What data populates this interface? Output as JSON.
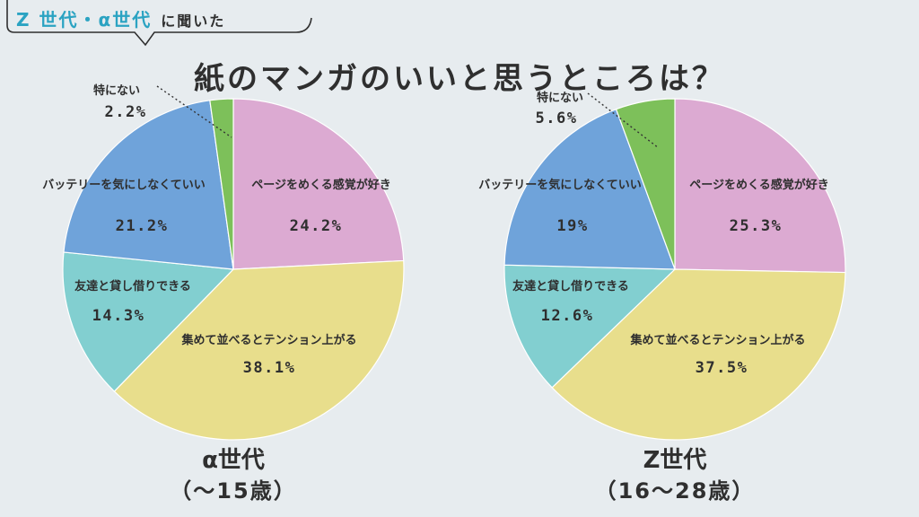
{
  "header": {
    "generations_label": "Z 世代・α世代",
    "asked_label": "に聞いた"
  },
  "title": "紙のマンガのいいと思うところは？",
  "colors": {
    "pink": "#dcaad2",
    "yellow": "#e8de8c",
    "teal": "#82cfd0",
    "blue": "#6fa3da",
    "green": "#7dc05a",
    "background": "#e7ecef",
    "accent": "#2ba3c2"
  },
  "chart_data": [
    {
      "type": "pie",
      "name_label": "α世代",
      "age_label": "（〜15歳）",
      "slices": [
        {
          "label": "ページをめくる感覚が好き",
          "value": 24.2,
          "value_label": "24.2%",
          "color": "#dcaad2"
        },
        {
          "label": "集めて並べるとテンション上がる",
          "value": 38.1,
          "value_label": "38.1%",
          "color": "#e8de8c"
        },
        {
          "label": "友達と貸し借りできる",
          "value": 14.3,
          "value_label": "14.3%",
          "color": "#82cfd0"
        },
        {
          "label": "バッテリーを気にしなくていい",
          "value": 21.2,
          "value_label": "21.2%",
          "color": "#6fa3da"
        },
        {
          "label": "特にない",
          "value": 2.2,
          "value_label": "2.2%",
          "color": "#7dc05a"
        }
      ]
    },
    {
      "type": "pie",
      "name_label": "Z世代",
      "age_label": "（16〜28歳）",
      "slices": [
        {
          "label": "ページをめくる感覚が好き",
          "value": 25.3,
          "value_label": "25.3%",
          "color": "#dcaad2"
        },
        {
          "label": "集めて並べるとテンション上がる",
          "value": 37.5,
          "value_label": "37.5%",
          "color": "#e8de8c"
        },
        {
          "label": "友達と貸し借りできる",
          "value": 12.6,
          "value_label": "12.6%",
          "color": "#82cfd0"
        },
        {
          "label": "バッテリーを気にしなくていい",
          "value": 19,
          "value_label": "19%",
          "color": "#6fa3da"
        },
        {
          "label": "特にない",
          "value": 5.6,
          "value_label": "5.6%",
          "color": "#7dc05a"
        }
      ]
    }
  ]
}
